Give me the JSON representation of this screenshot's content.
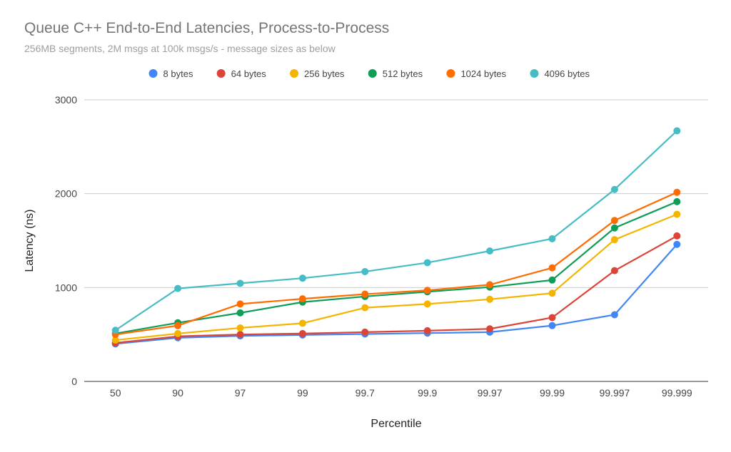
{
  "chart_data": {
    "type": "line",
    "title": "Queue C++ End-to-End Latencies, Process-to-Process",
    "subtitle": "256MB segments, 2M msgs at 100k msgs/s - message sizes as below",
    "xlabel": "Percentile",
    "ylabel": "Latency (ns)",
    "ylim": [
      0,
      3000
    ],
    "yticks": [
      "0",
      "1000",
      "2000",
      "3000"
    ],
    "grid": true,
    "legend_position": "top",
    "categories": [
      "50",
      "90",
      "97",
      "99",
      "99.7",
      "99.9",
      "99.97",
      "99.99",
      "99.997",
      "99.999"
    ],
    "series": [
      {
        "name": "8 bytes",
        "color": "#4285f4",
        "values": [
          400,
          465,
          485,
          495,
          505,
          515,
          525,
          595,
          710,
          1460
        ]
      },
      {
        "name": "64 bytes",
        "color": "#db4437",
        "values": [
          410,
          480,
          500,
          510,
          525,
          540,
          560,
          680,
          1180,
          1550
        ]
      },
      {
        "name": "256 bytes",
        "color": "#f4b400",
        "values": [
          440,
          510,
          570,
          620,
          785,
          825,
          875,
          940,
          1510,
          1780
        ]
      },
      {
        "name": "512 bytes",
        "color": "#0f9d58",
        "values": [
          510,
          625,
          730,
          845,
          905,
          955,
          1005,
          1080,
          1635,
          1915
        ]
      },
      {
        "name": "1024 bytes",
        "color": "#ff6d00",
        "values": [
          500,
          595,
          825,
          880,
          930,
          970,
          1030,
          1210,
          1715,
          2015
        ]
      },
      {
        "name": "4096 bytes",
        "color": "#46bdc6",
        "values": [
          545,
          990,
          1045,
          1100,
          1170,
          1265,
          1390,
          1520,
          2045,
          2670
        ]
      }
    ]
  }
}
